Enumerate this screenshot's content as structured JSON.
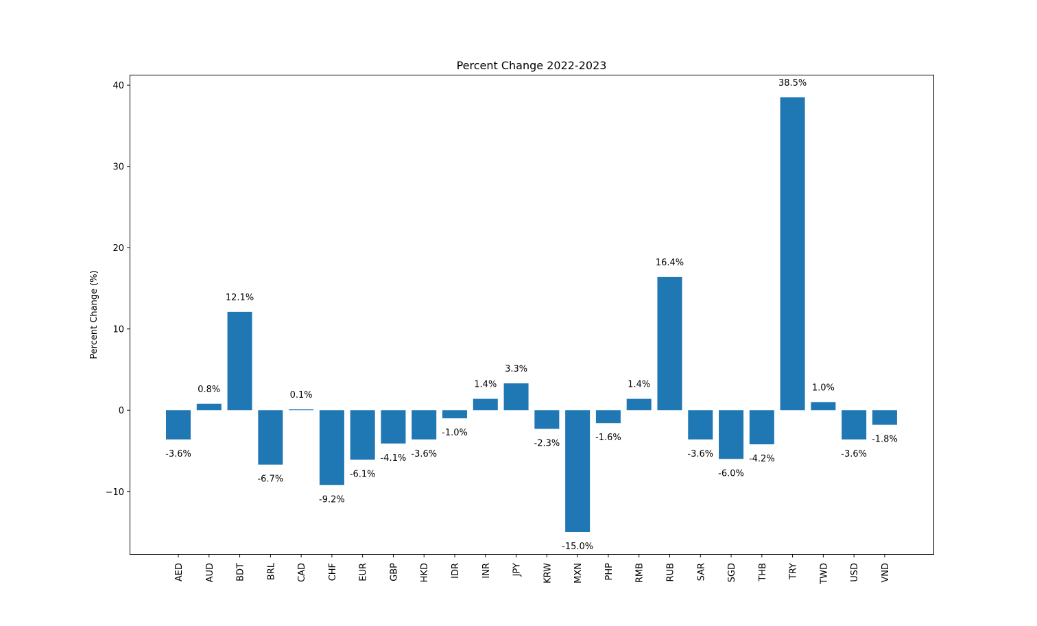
{
  "chart_data": {
    "type": "bar",
    "title": "Percent Change 2022-2023",
    "xlabel": "",
    "ylabel": "Percent Change (%)",
    "categories": [
      "AED",
      "AUD",
      "BDT",
      "BRL",
      "CAD",
      "CHF",
      "EUR",
      "GBP",
      "HKD",
      "IDR",
      "INR",
      "JPY",
      "KRW",
      "MXN",
      "PHP",
      "RMB",
      "RUB",
      "SAR",
      "SGD",
      "THB",
      "TRY",
      "TWD",
      "USD",
      "VND"
    ],
    "values": [
      -3.6,
      0.8,
      12.1,
      -6.7,
      0.1,
      -9.2,
      -6.1,
      -4.1,
      -3.6,
      -1.0,
      1.4,
      3.3,
      -2.3,
      -15.0,
      -1.6,
      1.4,
      16.4,
      -3.6,
      -6.0,
      -4.2,
      38.5,
      1.0,
      -3.6,
      -1.8
    ],
    "data_labels": [
      "-3.6%",
      "0.8%",
      "12.1%",
      "-6.7%",
      "0.1%",
      "-9.2%",
      "-6.1%",
      "-4.1%",
      "-3.6%",
      "-1.0%",
      "1.4%",
      "3.3%",
      "-2.3%",
      "-15.0%",
      "-1.6%",
      "1.4%",
      "16.4%",
      "-3.6%",
      "-6.0%",
      "-4.2%",
      "38.5%",
      "1.0%",
      "-3.6%",
      "-1.8%"
    ],
    "ylim": [
      -17.7,
      41.2
    ],
    "yticks": [
      -10,
      0,
      10,
      20,
      30,
      40
    ],
    "ytick_labels": [
      "−10",
      "0",
      "10",
      "20",
      "30",
      "40"
    ],
    "bar_color": "#1f77b4",
    "grid": false,
    "legend": "none"
  }
}
